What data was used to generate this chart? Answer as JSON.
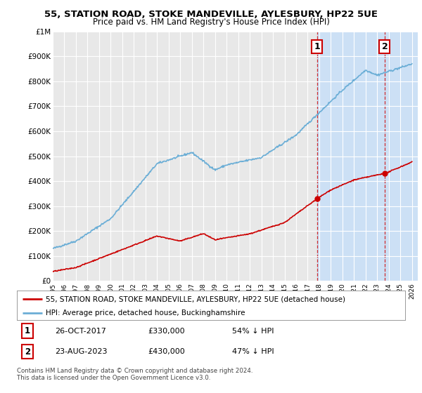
{
  "title": "55, STATION ROAD, STOKE MANDEVILLE, AYLESBURY, HP22 5UE",
  "subtitle": "Price paid vs. HM Land Registry's House Price Index (HPI)",
  "ylim": [
    0,
    1000000
  ],
  "yticks": [
    0,
    100000,
    200000,
    300000,
    400000,
    500000,
    600000,
    700000,
    800000,
    900000,
    1000000
  ],
  "ytick_labels": [
    "£0",
    "£100K",
    "£200K",
    "£300K",
    "£400K",
    "£500K",
    "£600K",
    "£700K",
    "£800K",
    "£900K",
    "£1M"
  ],
  "xlim_start": 1995.0,
  "xlim_end": 2026.5,
  "hpi_color": "#6baed6",
  "price_color": "#cc0000",
  "vline_color": "#cc0000",
  "vline_style": "--",
  "purchase1_x": 2017.82,
  "purchase1_y": 330000,
  "purchase2_x": 2023.64,
  "purchase2_y": 430000,
  "purchase1_label": "1",
  "purchase2_label": "2",
  "legend_line1": "55, STATION ROAD, STOKE MANDEVILLE, AYLESBURY, HP22 5UE (detached house)",
  "legend_line2": "HPI: Average price, detached house, Buckinghamshire",
  "note1_label": "1",
  "note1_date": "26-OCT-2017",
  "note1_price": "£330,000",
  "note1_hpi": "54% ↓ HPI",
  "note2_label": "2",
  "note2_date": "23-AUG-2023",
  "note2_price": "£430,000",
  "note2_hpi": "47% ↓ HPI",
  "copyright": "Contains HM Land Registry data © Crown copyright and database right 2024.\nThis data is licensed under the Open Government Licence v3.0.",
  "bg_color": "#ffffff",
  "plot_bg_color": "#e8e8e8",
  "grid_color": "#ffffff",
  "shade_color": "#cce0f5"
}
